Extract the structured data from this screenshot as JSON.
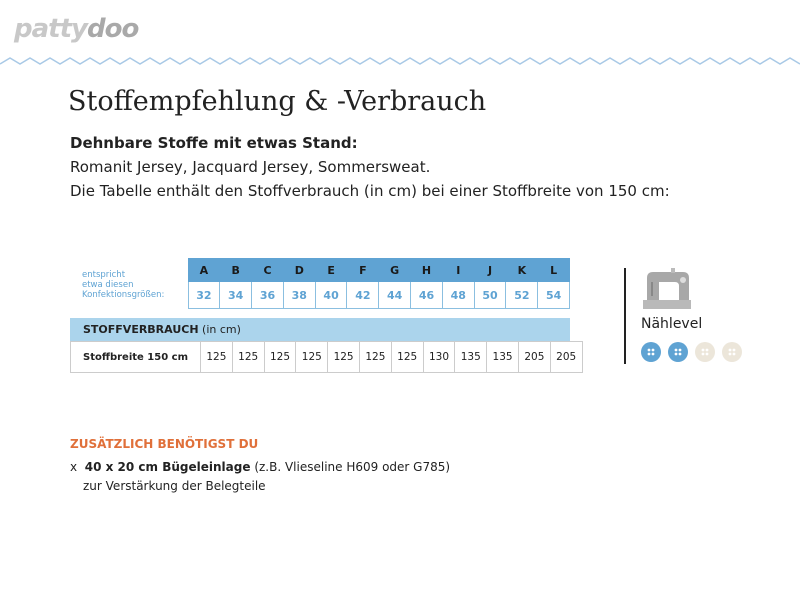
{
  "logo": {
    "part1": "patty",
    "part2": "doo"
  },
  "title": "Stoffempfehlung & -Verbrauch",
  "subtitle": "Dehnbare Stoffe mit etwas Stand:",
  "fabrics": "Romanit Jersey, Jacquard Jersey, Sommersweat.",
  "note": "Die Tabelle enthält den Stoffverbrauch (in cm) bei einer Stoffbreite von 150 cm:",
  "size_label": [
    "entspricht",
    "etwa diesen",
    "Konfektionsgrößen:"
  ],
  "size_letters": [
    "A",
    "B",
    "C",
    "D",
    "E",
    "F",
    "G",
    "H",
    "I",
    "J",
    "K",
    "L"
  ],
  "size_numbers": [
    "32",
    "34",
    "36",
    "38",
    "40",
    "42",
    "44",
    "46",
    "48",
    "50",
    "52",
    "54"
  ],
  "usage_header": {
    "bold": "STOFFVERBRAUCH",
    "unit": "(in cm)"
  },
  "usage_row": {
    "label": "Stoffbreite 150 cm",
    "values": [
      "125",
      "125",
      "125",
      "125",
      "125",
      "125",
      "125",
      "130",
      "135",
      "135",
      "205",
      "205"
    ]
  },
  "sewing_level": {
    "label": "Nählevel",
    "level": 2,
    "max": 4,
    "icon": "sewing-machine-icon"
  },
  "extra": {
    "heading": "ZUSÄTZLICH BENÖTIGST DU",
    "bullet": "x",
    "bold": "40 x 20 cm Bügeleinlage",
    "detail": "(z.B. Vlieseline H609 oder G785)",
    "line2": "zur Verstärkung der Belegteile"
  },
  "colors": {
    "accent_blue": "#5fa3d3",
    "light_blue": "#abd4ec",
    "orange": "#e0703a",
    "button_inactive": "#ece6da"
  }
}
